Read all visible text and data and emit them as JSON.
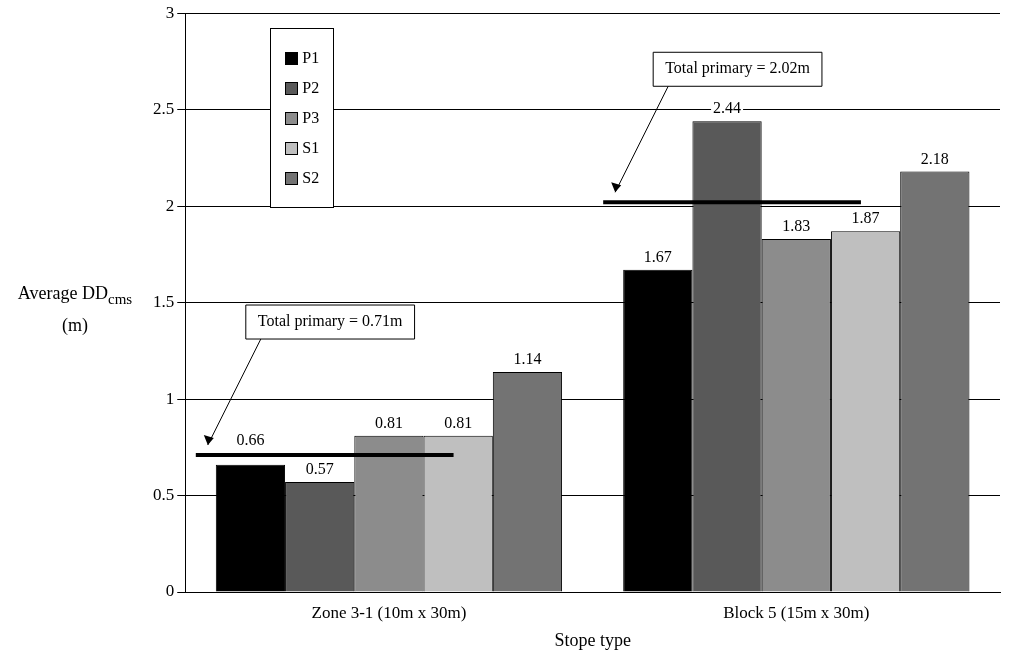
{
  "chart_data": {
    "type": "bar",
    "xlabel": "Stope type",
    "ylabel": "Average DD$_{cms}$ (m)",
    "categories": [
      "Zone 3-1 (10m x 30m)",
      "Block 5 (15m x 30m)"
    ],
    "series": [
      {
        "name": "P1",
        "color": "#000000",
        "values": [
          0.66,
          1.67
        ]
      },
      {
        "name": "P2",
        "color": "#595959",
        "values": [
          0.57,
          2.44
        ]
      },
      {
        "name": "P3",
        "color": "#8c8c8c",
        "values": [
          0.81,
          1.83
        ]
      },
      {
        "name": "S1",
        "color": "#bfbfbf",
        "values": [
          0.81,
          1.87
        ]
      },
      {
        "name": "S2",
        "color": "#737373",
        "values": [
          1.14,
          2.18
        ]
      }
    ],
    "ylim": [
      0,
      3
    ],
    "yticks": [
      0,
      0.5,
      1,
      1.5,
      2,
      2.5,
      3
    ],
    "grid": "y",
    "legend": "top left",
    "data_labels": true,
    "ref_lines": [
      {
        "axis": "y",
        "value": 0.71,
        "label": "Total primary = 0.71m"
      },
      {
        "axis": "y",
        "value": 2.02,
        "label": "Total primary = 2.02m"
      }
    ]
  }
}
